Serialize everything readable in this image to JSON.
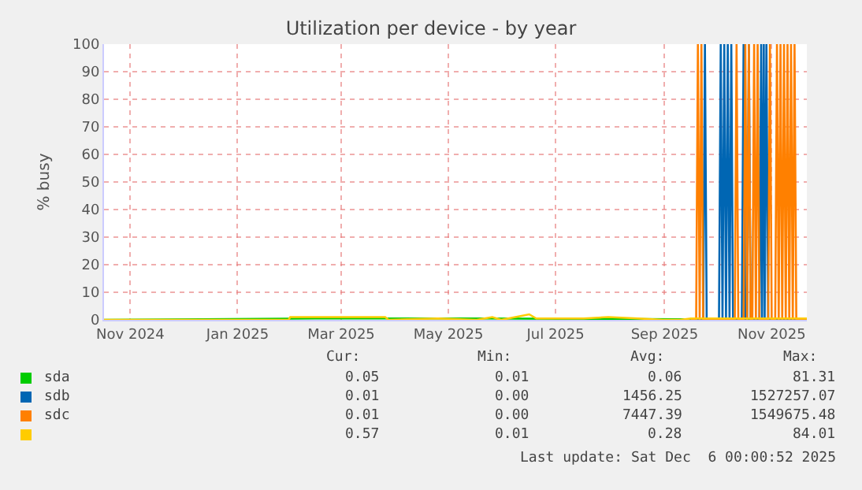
{
  "chart_data": {
    "type": "line",
    "title": "Utilization per device - by year",
    "ylabel": "% busy",
    "xlim": [
      "2024-11-01",
      "2025-12-06"
    ],
    "ylim": [
      0,
      100
    ],
    "xticks": [
      {
        "value": "2024-11-16",
        "label": "Nov 2024"
      },
      {
        "value": "2025-01-16",
        "label": "Jan 2025"
      },
      {
        "value": "2025-03-16",
        "label": "Mar 2025"
      },
      {
        "value": "2025-05-16",
        "label": "May 2025"
      },
      {
        "value": "2025-07-16",
        "label": "Jul 2025"
      },
      {
        "value": "2025-09-16",
        "label": "Sep 2025"
      },
      {
        "value": "2025-11-16",
        "label": "Nov 2025"
      }
    ],
    "yticks": [
      0,
      10,
      20,
      30,
      40,
      50,
      60,
      70,
      80,
      90,
      100
    ],
    "grid": true,
    "legend": "bottom",
    "marker": "none",
    "line_style": "solid",
    "series": [
      {
        "name": "sda",
        "color": "#00cc00",
        "x": [
          "2024-11-01",
          "2025-03-01",
          "2025-06-01",
          "2025-12-06"
        ],
        "values": [
          0,
          0.5,
          0.5,
          0
        ]
      },
      {
        "name": "sdb",
        "color": "#0066b3",
        "x": [
          "2025-10-01",
          "2025-10-08",
          "2025-10-09",
          "2025-10-10",
          "2025-10-17",
          "2025-10-18",
          "2025-10-19",
          "2025-10-20",
          "2025-10-21",
          "2025-10-22",
          "2025-10-23",
          "2025-10-24",
          "2025-10-25",
          "2025-10-30",
          "2025-10-31",
          "2025-11-01",
          "2025-11-02",
          "2025-11-03",
          "2025-11-04",
          "2025-11-09",
          "2025-11-10",
          "2025-11-10T12:00",
          "2025-11-11T12:00",
          "2025-11-12",
          "2025-11-13",
          "2025-11-14",
          "2025-12-06"
        ],
        "values": [
          0,
          0,
          100,
          0,
          0,
          100,
          0,
          100,
          0,
          100,
          0,
          100,
          0,
          0,
          100,
          0,
          0,
          100,
          0,
          0,
          100,
          0,
          100,
          0,
          100,
          0,
          0
        ]
      },
      {
        "name": "sdc",
        "color": "#ff8000",
        "x": [
          "2025-10-01",
          "2025-10-04",
          "2025-10-05",
          "2025-10-06",
          "2025-10-07",
          "2025-10-08",
          "2025-10-26",
          "2025-10-27",
          "2025-10-28",
          "2025-10-31",
          "2025-11-01",
          "2025-11-02",
          "2025-11-03",
          "2025-11-04",
          "2025-11-05",
          "2025-11-06",
          "2025-11-07",
          "2025-11-08",
          "2025-11-09",
          "2025-11-14",
          "2025-11-15",
          "2025-11-16",
          "2025-11-18",
          "2025-11-19",
          "2025-11-20",
          "2025-11-21",
          "2025-11-22",
          "2025-11-23",
          "2025-11-24",
          "2025-11-25",
          "2025-11-26",
          "2025-11-27",
          "2025-11-28",
          "2025-11-29",
          "2025-11-30",
          "2025-12-06"
        ],
        "values": [
          0,
          0,
          100,
          0,
          100,
          0,
          0,
          100,
          0,
          0,
          100,
          0,
          100,
          0,
          0,
          100,
          0,
          100,
          0,
          0,
          100,
          0,
          0,
          100,
          0,
          100,
          0,
          100,
          0,
          100,
          0,
          100,
          0,
          100,
          0,
          0
        ]
      },
      {
        "color": "#ffcc00",
        "x": [
          "2024-11-01",
          "2025-02-14",
          "2025-02-15",
          "2025-04-10",
          "2025-04-12",
          "2025-05-10",
          "2025-06-01",
          "2025-06-10",
          "2025-06-15",
          "2025-07-01",
          "2025-07-05",
          "2025-08-01",
          "2025-08-15",
          "2025-09-01",
          "2025-09-15",
          "2025-09-25",
          "2025-10-01",
          "2025-12-06"
        ],
        "values": [
          0,
          0,
          1,
          1,
          0,
          0.5,
          0,
          1,
          0,
          2,
          0.5,
          0.5,
          1,
          0.5,
          0,
          0,
          0.5,
          0.5
        ]
      }
    ],
    "annotations": [
      "Cur:",
      "Min:",
      "Avg:",
      "Max:",
      "0.05",
      "0.01",
      "0.06",
      "81.31",
      "0.01",
      "0.00",
      "1456.25",
      "1527257.07",
      "0.01",
      "0.00",
      "7447.39",
      "1549675.48",
      "0.57",
      "0.01",
      "0.28",
      "84.01",
      "Last update: Sat Dec  6 00:00:52 2025"
    ]
  }
}
